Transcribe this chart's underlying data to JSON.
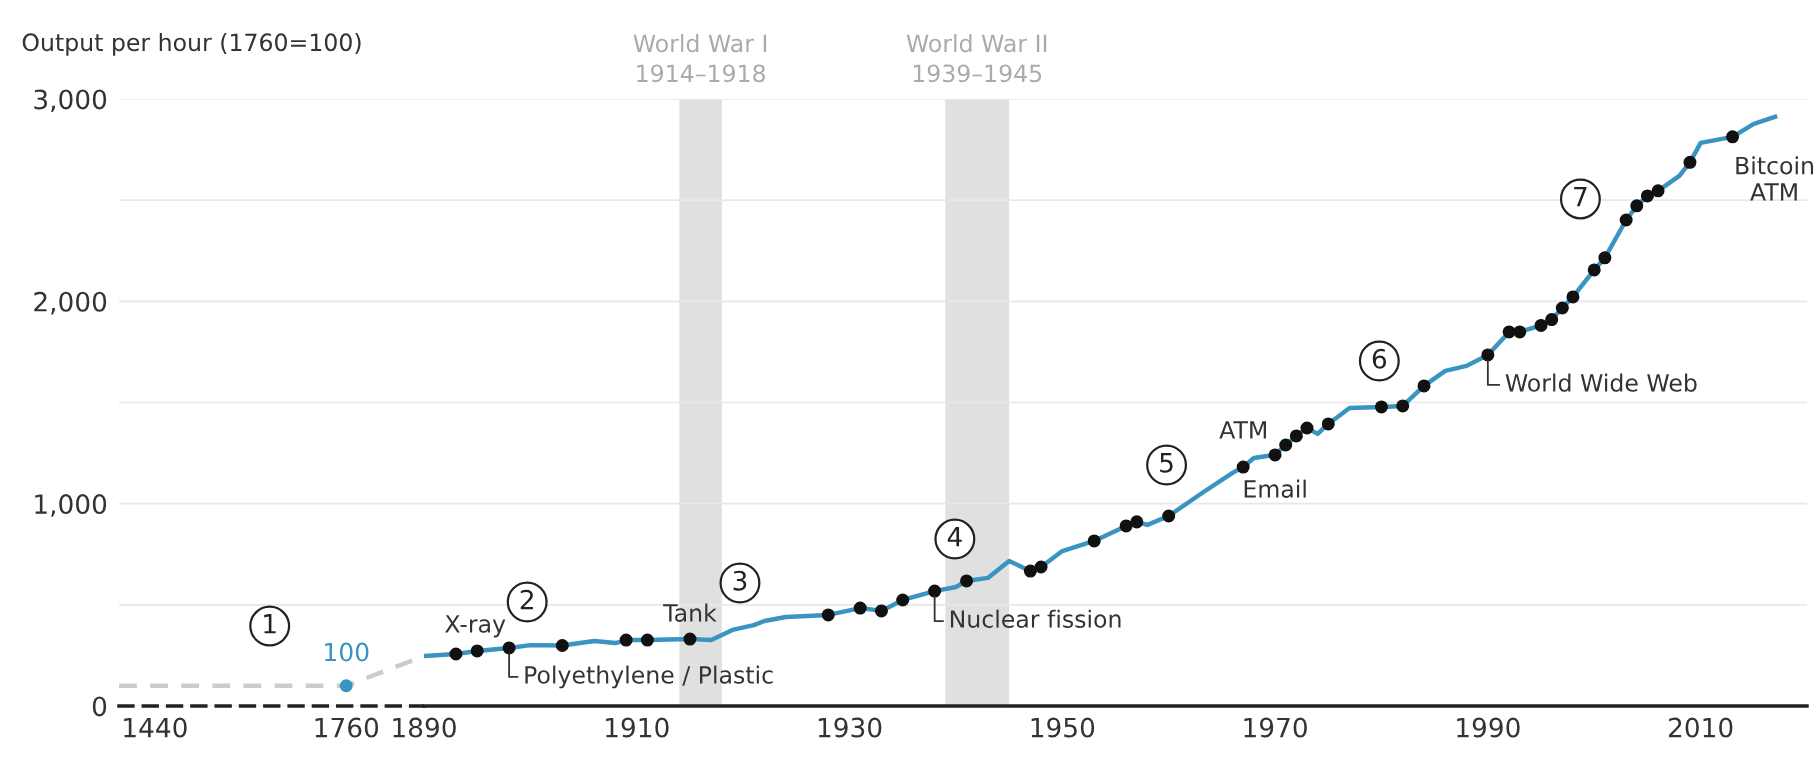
{
  "chart_data": [
    {
      "type": "line",
      "ylabel": "Output per hour (1760=100)",
      "xlim": [
        1380,
        1890
      ],
      "xticks": [
        1440,
        1760
      ],
      "ylim": [
        0,
        3000
      ],
      "yticks": [
        0,
        {
          "value": 500,
          "label": null
        },
        {
          "value": 1000,
          "label": "1,000"
        },
        {
          "value": 1500,
          "label": null
        },
        {
          "value": 2000,
          "label": "2,000"
        },
        {
          "value": 2500,
          "label": null
        },
        {
          "value": 3000,
          "label": "3,000"
        }
      ],
      "grid": "y",
      "series": [
        {
          "color": "#cccccc",
          "line_style": "dashed",
          "marker": "none",
          "x": [
            1380,
            1760,
            1890
          ],
          "values": [
            100,
            100,
            247
          ]
        },
        {
          "type": "scatter",
          "color": "#3a94c2",
          "marker": "circle",
          "x": [
            1760
          ],
          "values": [
            100
          ],
          "value_labels": [
            "100"
          ]
        }
      ],
      "annotations": [
        {
          "text": "1",
          "x": 1632,
          "y": 395
        }
      ]
    },
    {
      "type": "line",
      "xlim": [
        1890,
        2020
      ],
      "xticks": [
        1890,
        1910,
        1930,
        1950,
        1970,
        1990,
        2010
      ],
      "ylim": [
        0,
        3000
      ],
      "yticks": [
        0,
        500,
        1000,
        1500,
        2000,
        2500,
        3000
      ],
      "tick_labels": "x",
      "grid": "y",
      "series": [
        {
          "color": "#3a94c2",
          "line_style": "solid",
          "marker": "none",
          "x": [
            1890,
            1893,
            1895,
            1898,
            1900,
            1903,
            1906,
            1908,
            1909,
            1911,
            1915,
            1917,
            1919,
            1921,
            1922,
            1924,
            1926,
            1928,
            1931,
            1933,
            1935,
            1938,
            1940,
            1941,
            1943,
            1945,
            1947,
            1948,
            1950,
            1953,
            1956,
            1957,
            1958,
            1960,
            1963,
            1966,
            1967,
            1968,
            1970,
            1971,
            1972,
            1973,
            1974,
            1975,
            1977,
            1980,
            1982,
            1984,
            1986,
            1988,
            1990,
            1992,
            1993,
            1995,
            1996,
            1997,
            1998,
            2000,
            2001,
            2003,
            2004,
            2005,
            2006,
            2008,
            2009,
            2010,
            2013,
            2015,
            2017
          ],
          "values": [
            247,
            257,
            272,
            287,
            301,
            299,
            321,
            311,
            326,
            326,
            331,
            326,
            376,
            400,
            420,
            440,
            445,
            450,
            484,
            470,
            524,
            568,
            588,
            618,
            633,
            717,
            667,
            687,
            766,
            816,
            890,
            910,
            895,
            939,
            1048,
            1152,
            1181,
            1226,
            1241,
            1290,
            1335,
            1374,
            1345,
            1394,
            1473,
            1478,
            1483,
            1582,
            1656,
            1681,
            1735,
            1849,
            1849,
            1881,
            1910,
            1967,
            2022,
            2155,
            2215,
            2402,
            2472,
            2521,
            2546,
            2620,
            2687,
            2783,
            2813,
            2877,
            2912
          ]
        },
        {
          "type": "scatter",
          "color": "#111111",
          "marker": "circle",
          "x": [
            1893,
            1895,
            1898,
            1903,
            1909,
            1911,
            1915,
            1928,
            1931,
            1933,
            1935,
            1938,
            1941,
            1947,
            1948,
            1953,
            1956,
            1957,
            1960,
            1967,
            1970,
            1971,
            1972,
            1973,
            1975,
            1980,
            1982,
            1984,
            1990,
            1992,
            1993,
            1995,
            1996,
            1997,
            1998,
            2000,
            2001,
            2003,
            2004,
            2005,
            2006,
            2009,
            2013
          ],
          "values": [
            257,
            272,
            287,
            299,
            326,
            326,
            331,
            450,
            484,
            470,
            524,
            568,
            618,
            667,
            687,
            816,
            890,
            910,
            939,
            1181,
            1241,
            1290,
            1335,
            1374,
            1394,
            1478,
            1483,
            1582,
            1735,
            1849,
            1849,
            1881,
            1910,
            1967,
            2022,
            2155,
            2215,
            2402,
            2472,
            2521,
            2546,
            2687,
            2813
          ]
        }
      ],
      "bands": [
        {
          "axis": "x",
          "from": 1914,
          "to": 1918,
          "label": "World War I\n1914–1918",
          "color": "#e0e0e0"
        },
        {
          "axis": "x",
          "from": 1939,
          "to": 1945,
          "label": "World War II\n1939–1945",
          "color": "#e0e0e0"
        }
      ],
      "annotations": [
        {
          "text": "2",
          "x": 1899.7,
          "y": 514
        },
        {
          "text": "3",
          "x": 1919.7,
          "y": 608
        },
        {
          "text": "4",
          "x": 1939.9,
          "y": 825
        },
        {
          "text": "5",
          "x": 1959.8,
          "y": 1191
        },
        {
          "text": "6",
          "x": 1979.8,
          "y": 1705
        },
        {
          "text": "7",
          "x": 1998.7,
          "y": 2506
        },
        {
          "text": "X-ray",
          "x": 1895,
          "y": 272
        },
        {
          "text": "Tank",
          "x": 1915,
          "y": 331
        },
        {
          "text": "Polyethylene / Plastic",
          "x": 1898,
          "y": 287
        },
        {
          "text": "Nuclear fission",
          "x": 1938,
          "y": 568
        },
        {
          "text": "ATM",
          "x": 1971,
          "y": 1290
        },
        {
          "text": "Email",
          "x": 1967,
          "y": 1181
        },
        {
          "text": "World Wide Web",
          "x": 1990,
          "y": 1735
        },
        {
          "text": "Bitcoin\nATM",
          "x": 2013,
          "y": 2813
        }
      ]
    }
  ]
}
